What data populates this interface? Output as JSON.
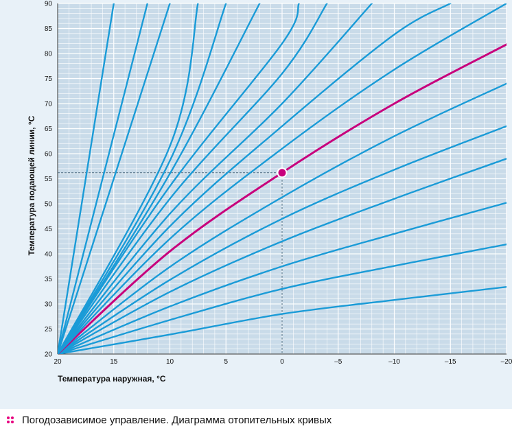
{
  "caption": "Погодозависимое управление. Диаграмма отопительных кривых",
  "chart_data": {
    "type": "line",
    "xlabel": "Температура наружная, °С",
    "ylabel": "Температура подающей линии, °С",
    "xlim": [
      20,
      -20
    ],
    "ylim": [
      20,
      90
    ],
    "x_ticks": [
      "20",
      "15",
      "10",
      "5",
      "0",
      "–5",
      "–10",
      "–15",
      "–20"
    ],
    "x_tick_values": [
      20,
      15,
      10,
      5,
      0,
      -5,
      -10,
      -15,
      -20
    ],
    "y_ticks": [
      "20",
      "25",
      "30",
      "35",
      "40",
      "45",
      "50",
      "55",
      "60",
      "65",
      "70",
      "75",
      "80",
      "85",
      "90"
    ],
    "y_tick_values": [
      20,
      25,
      30,
      35,
      40,
      45,
      50,
      55,
      60,
      65,
      70,
      75,
      80,
      85,
      90
    ],
    "grid": true,
    "colors": {
      "curve": "#1a9bd7",
      "highlight": "#c8007c",
      "grid": "#ffffff",
      "background": "#e8f1f8",
      "guide": "#4a6a80"
    },
    "series": [
      {
        "x": [
          20,
          10,
          0,
          -10,
          -20
        ],
        "y": [
          20,
          23.9,
          28.0,
          30.8,
          33.4
        ]
      },
      {
        "x": [
          20,
          10,
          0,
          -10,
          -20
        ],
        "y": [
          20,
          26.8,
          33.0,
          37.6,
          41.9
        ]
      },
      {
        "x": [
          20,
          10,
          0,
          -10,
          -20
        ],
        "y": [
          20,
          29.5,
          37.5,
          44.0,
          50.2
        ]
      },
      {
        "x": [
          20,
          10,
          0,
          -10,
          -20
        ],
        "y": [
          20,
          32.4,
          42.5,
          51.0,
          59.0
        ]
      },
      {
        "x": [
          20,
          10,
          0,
          -10,
          -20
        ],
        "y": [
          20,
          34.8,
          47.0,
          56.8,
          65.5
        ]
      },
      {
        "x": [
          20,
          10,
          0,
          -10,
          -20
        ],
        "y": [
          20,
          37.4,
          51.3,
          63.5,
          74.0
        ]
      },
      {
        "x": [
          20,
          10,
          0,
          -10,
          -20
        ],
        "y": [
          20,
          40.5,
          56.2,
          70.0,
          81.8
        ],
        "highlight": true
      },
      {
        "x": [
          20,
          10,
          0,
          -10,
          -20
        ],
        "y": [
          20,
          43.0,
          61.0,
          76.8,
          90.0
        ]
      },
      {
        "x": [
          20,
          10,
          0,
          -10,
          -15
        ],
        "y": [
          20,
          45.5,
          65.5,
          83.8,
          90.0
        ]
      },
      {
        "x": [
          20,
          10,
          0,
          -8
        ],
        "y": [
          20,
          48.0,
          70.0,
          90.0
        ]
      },
      {
        "x": [
          20,
          10,
          0,
          -4
        ],
        "y": [
          20,
          51.0,
          76.0,
          90.0
        ]
      },
      {
        "x": [
          20,
          10,
          0,
          -1.5
        ],
        "y": [
          20,
          53.5,
          82.0,
          90.0
        ]
      },
      {
        "x": [
          20,
          10,
          2
        ],
        "y": [
          20,
          56.0,
          90.0
        ]
      },
      {
        "x": [
          20,
          10,
          5
        ],
        "y": [
          20,
          58.6,
          90.0
        ]
      },
      {
        "x": [
          20,
          10,
          7.5
        ],
        "y": [
          20,
          61.5,
          90.0
        ]
      },
      {
        "x": [
          20,
          10,
          10
        ],
        "y": [
          20,
          90.0,
          90.0
        ]
      },
      {
        "x": [
          20,
          12,
          12
        ],
        "y": [
          20,
          90.0,
          90.0
        ]
      },
      {
        "x": [
          20,
          15
        ],
        "y": [
          20,
          90.0
        ]
      }
    ],
    "highlight_point": {
      "x": 0,
      "y": 56.2
    }
  }
}
